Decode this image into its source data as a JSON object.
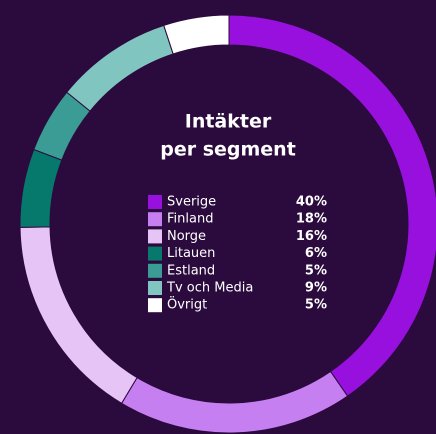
{
  "chart_data": {
    "type": "donut",
    "title": [
      "Intäkter",
      "per segment"
    ],
    "categories": [
      "Sverige",
      "Finland",
      "Norge",
      "Litauen",
      "Estland",
      "Tv och Media",
      "Övrigt"
    ],
    "values": [
      40,
      18,
      16,
      6,
      5,
      9,
      5
    ],
    "value_labels": [
      "40%",
      "18%",
      "16%",
      "6%",
      "5%",
      "9%",
      "5%"
    ],
    "colors": [
      "#9810dd",
      "#c57ff0",
      "#e6c4f6",
      "#07786c",
      "#3a9c94",
      "#80c5c0",
      "#ffffff"
    ]
  }
}
